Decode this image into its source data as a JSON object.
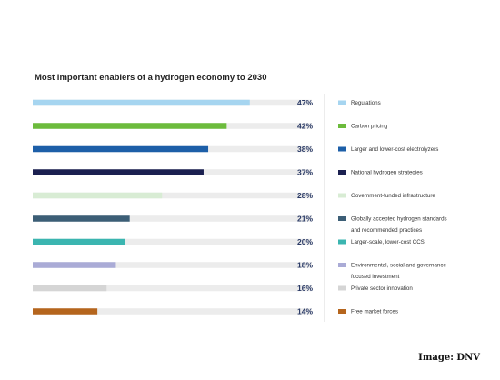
{
  "credit": "Image: DNV",
  "chart_data": {
    "type": "bar",
    "orientation": "horizontal",
    "title": "Most important enablers of a hydrogen economy to 2030",
    "unit": "%",
    "xlim": [
      0,
      50
    ],
    "grid": false,
    "legend_position": "right",
    "categories": [
      "Regulations",
      "Carbon pricing",
      "Larger and lower-cost electrolyzers",
      "National hydrogen strategies",
      "Government-funded infrastructure",
      "Globally accepted hydrogen standards and recommended practices",
      "Larger-scale, lower-cost CCS",
      "Environmental, social and governance focused investment",
      "Private sector innovation",
      "Free market forces"
    ],
    "legend_lines": [
      [
        "Regulations"
      ],
      [
        "Carbon pricing"
      ],
      [
        "Larger and lower-cost electrolyzers"
      ],
      [
        "National hydrogen strategies"
      ],
      [
        "Government-funded infrastructure"
      ],
      [
        "Globally accepted hydrogen standards",
        "and recommended practices"
      ],
      [
        "Larger-scale, lower-cost CCS"
      ],
      [
        "Environmental, social and governance",
        "focused investment"
      ],
      [
        "Private sector innovation"
      ],
      [
        "Free market forces"
      ]
    ],
    "values": [
      47,
      42,
      38,
      37,
      28,
      21,
      20,
      18,
      16,
      14
    ],
    "labels": [
      "47%",
      "42%",
      "38%",
      "37%",
      "28%",
      "21%",
      "20%",
      "18%",
      "16%",
      "14%"
    ],
    "colors": [
      "#a6d5f0",
      "#6cbb3c",
      "#1d5fa8",
      "#1b2050",
      "#d8ecd4",
      "#3c5e76",
      "#3bb5b0",
      "#aaabd6",
      "#d5d5d5",
      "#b5651d"
    ]
  }
}
